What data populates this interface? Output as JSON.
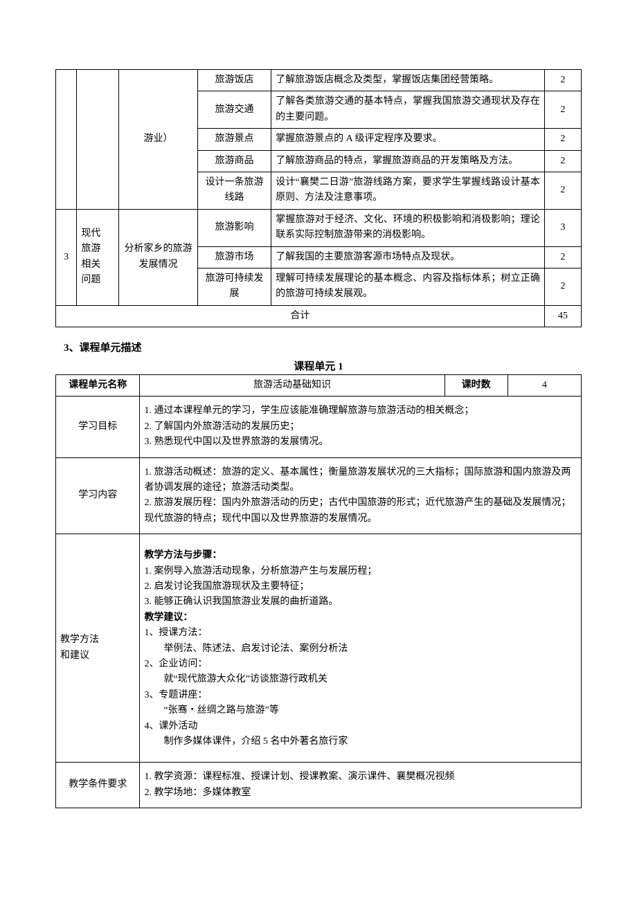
{
  "table1": {
    "continuedCell": "游业）",
    "rows_group2": [
      {
        "topic": "旅游饭店",
        "desc": "了解旅游饭店概念及类型，掌握饭店集团经营策略。",
        "hours": "2"
      },
      {
        "topic": "旅游交通",
        "desc": "了解各类旅游交通的基本特点，掌握我国旅游交通现状及存在的主要问题。",
        "hours": "2"
      },
      {
        "topic": "旅游景点",
        "desc": "掌握旅游景点的 A 级评定程序及要求。",
        "hours": "2"
      },
      {
        "topic": "旅游商品",
        "desc": "了解旅游商品的特点，掌握旅游商品的开发策略及方法。",
        "hours": "2"
      },
      {
        "topic": "设计一条旅游线路",
        "desc": "设计“襄樊二日游”旅游线路方案，要求学生掌握线路设计基本原则、方法及注意事项。",
        "hours": "2"
      }
    ],
    "group3": {
      "num": "3",
      "module": "现代\n旅游\n相关\n问题",
      "task": "分析家乡的旅游发展情况",
      "rows": [
        {
          "topic": "旅游影响",
          "desc": "掌握旅游对于经济、文化、环境的积极影响和消极影响；理论联系实际控制旅游带来的消极影响。",
          "hours": "3"
        },
        {
          "topic": "旅游市场",
          "desc": "了解我国的主要旅游客源市场特点及现状。",
          "hours": "2"
        },
        {
          "topic": "旅游可持续发展",
          "desc": "理解可持续发展理论的基本概念、内容及指标体系；树立正确的旅游可持续发展观。",
          "hours": "2"
        }
      ]
    },
    "totalLabel": "合计",
    "totalHours": "45"
  },
  "headingSection3": "3、课程单元描述",
  "unitCaption": "课程单元 1",
  "table2": {
    "header": {
      "col1": "课程单元名称",
      "col2": "旅游活动基础知识",
      "col3": "课时数",
      "col4": "4"
    },
    "rows": [
      {
        "label": "学习目标",
        "content": "1. 通过本课程单元的学习，学生应该能准确理解旅游与旅游活动的相关概念；\n2. 了解国内外旅游活动的发展历史；\n3. 熟悉现代中国以及世界旅游的发展情况。"
      },
      {
        "label": "学习内容",
        "content": "1. 旅游活动概述：旅游的定义、基本属性；衡量旅游发展状况的三大指标；国际旅游和国内旅游及两者协调发展的途径；旅游活动类型。\n2. 旅游发展历程：国内外旅游活动的历史；古代中国旅游的形式；近代旅游产生的基础及发展情况；现代旅游的特点；现代中国以及世界旅游的发展情况。"
      },
      {
        "label": "教学方法\n和建议",
        "contentHtml": true,
        "content": {
          "h1": "教学方法与步骤：",
          "steps": [
            "1. 案例导入旅游活动现象，分析旅游产生与发展历程；",
            "2.  启发讨论我国旅游现状及主要特征；",
            "3.  能够正确认识我国旅游业发展的曲折道路。"
          ],
          "h2": "教学建议：",
          "items": [
            {
              "k": "1、授课方法：",
              "v": "举例法、陈述法、启发讨论法、案例分析法"
            },
            {
              "k": "2、企业访问：",
              "v": "就“现代旅游大众化”访谈旅游行政机关"
            },
            {
              "k": "3、专题讲座：",
              "v": "“张骞・丝绸之路与旅游”等"
            },
            {
              "k": "4、课外活动",
              "v": "制作多媒体课件，介绍 5 名中外著名旅行家"
            }
          ]
        }
      },
      {
        "label": "教学条件要求",
        "content": "1. 教学资源：课程标准、授课计划、授课教案、演示课件、襄樊概况视频\n2. 教学场地：多媒体教室"
      }
    ]
  }
}
